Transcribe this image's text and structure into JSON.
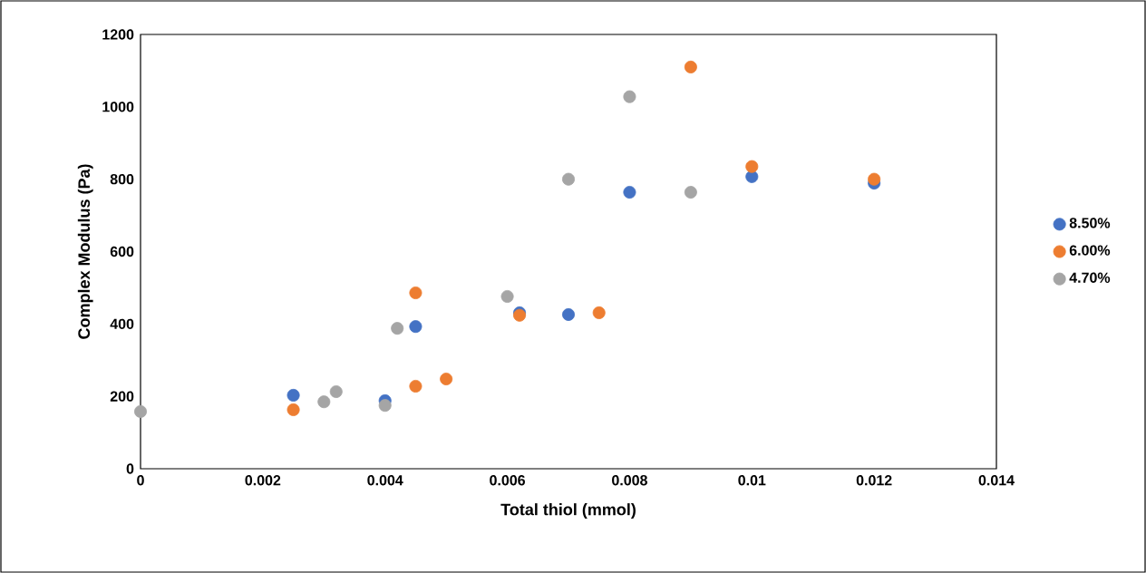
{
  "chart_data": {
    "type": "scatter",
    "xlabel": "Total thiol (mmol)",
    "ylabel": "Complex Modulus (Pa)",
    "xlim": [
      0,
      0.014
    ],
    "xticks": [
      0,
      0.002,
      0.004,
      0.006,
      0.008,
      0.01,
      0.012,
      0.014
    ],
    "ylim": [
      0,
      1200
    ],
    "yticks": [
      0,
      200,
      400,
      600,
      800,
      1000,
      1200
    ],
    "grid": false,
    "legend": "right",
    "marker": "circle",
    "series": [
      {
        "name": "8.50%",
        "color": "#4472c4",
        "x": [
          0.0025,
          0.004,
          0.0045,
          0.0062,
          0.007,
          0.008,
          0.01,
          0.012
        ],
        "values": [
          203,
          188,
          393,
          431,
          426,
          764,
          807,
          789
        ]
      },
      {
        "name": "6.00%",
        "color": "#ed7d31",
        "x": [
          0.0025,
          0.0045,
          0.0045,
          0.005,
          0.0062,
          0.0075,
          0.009,
          0.01,
          0.012
        ],
        "values": [
          163,
          228,
          486,
          248,
          424,
          431,
          1110,
          835,
          800
        ]
      },
      {
        "name": "4.70%",
        "color": "#a5a5a5",
        "x": [
          0,
          0.003,
          0.0032,
          0.004,
          0.0042,
          0.006,
          0.007,
          0.008,
          0.009
        ],
        "values": [
          158,
          185,
          213,
          175,
          388,
          476,
          800,
          1028,
          764
        ]
      }
    ]
  }
}
